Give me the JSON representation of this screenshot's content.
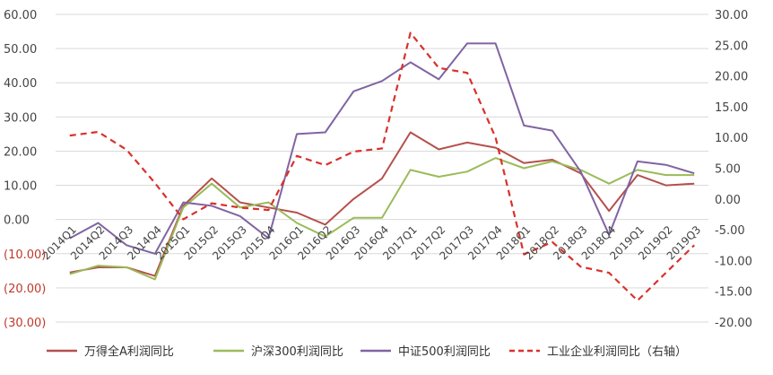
{
  "chart_data": {
    "type": "line",
    "categories": [
      "2014Q1",
      "2014Q2",
      "2014Q3",
      "2014Q4",
      "2015Q1",
      "2015Q2",
      "2015Q3",
      "2015Q4",
      "2016Q1",
      "2016Q2",
      "2016Q3",
      "2016Q4",
      "2017Q1",
      "2017Q2",
      "2017Q3",
      "2017Q4",
      "2018Q1",
      "2018Q2",
      "2018Q3",
      "2018Q4",
      "2019Q1",
      "2019Q2",
      "2019Q3"
    ],
    "left_axis": {
      "ylim": [
        -30,
        60
      ],
      "ticks": [
        60,
        50,
        40,
        30,
        20,
        10,
        0,
        -10,
        -20,
        -30
      ],
      "tick_labels": [
        "60.00",
        "50.00",
        "40.00",
        "30.00",
        "20.00",
        "10.00",
        "0.00",
        "(10.00)",
        "(20.00)",
        "(30.00)"
      ]
    },
    "right_axis": {
      "ylim": [
        -20,
        30
      ],
      "ticks": [
        30,
        25,
        20,
        15,
        10,
        5,
        0,
        -5,
        -10,
        -15,
        -20
      ],
      "tick_labels": [
        "30.00",
        "25.00",
        "20.00",
        "15.00",
        "10.00",
        "5.00",
        "0.00",
        "-5.00",
        "-10.00",
        "-15.00",
        "-20.00"
      ]
    },
    "grid": "horizontal",
    "legend_position": "bottom",
    "series": [
      {
        "name": "万得全A利润同比",
        "axis": "left",
        "color": "#b5504d",
        "dashed": false,
        "values": [
          -15.5,
          -14.0,
          -14.0,
          -16.5,
          4.0,
          12.0,
          5.0,
          3.5,
          2.0,
          -1.5,
          6.0,
          12.0,
          25.5,
          20.5,
          22.5,
          21.0,
          16.5,
          17.5,
          13.5,
          2.5,
          13.0,
          10.0,
          10.5
        ]
      },
      {
        "name": "沪深300利润同比",
        "axis": "left",
        "color": "#9bbb59",
        "dashed": false,
        "values": [
          -16.0,
          -13.5,
          -14.0,
          -17.5,
          3.5,
          10.5,
          3.5,
          5.0,
          -1.0,
          -5.0,
          0.5,
          0.5,
          14.5,
          12.5,
          14.0,
          18.0,
          15.0,
          17.0,
          14.5,
          10.5,
          14.5,
          13.0,
          13.0
        ]
      },
      {
        "name": "中证500利润同比",
        "axis": "left",
        "color": "#8064a2",
        "dashed": false,
        "values": [
          -5.5,
          -1.0,
          -7.5,
          -10.0,
          5.0,
          4.0,
          1.0,
          -5.5,
          25.0,
          25.5,
          37.5,
          40.5,
          46.0,
          41.0,
          51.5,
          51.5,
          27.5,
          26.0,
          14.0,
          -4.5,
          17.0,
          16.0,
          13.5
        ]
      },
      {
        "name": "工业企业利润同比（右轴）",
        "axis": "right",
        "color": "#d9312b",
        "dashed": true,
        "values": [
          10.3,
          10.9,
          8.0,
          2.6,
          -3.3,
          -0.7,
          -1.4,
          -1.8,
          7.0,
          5.5,
          7.7,
          8.2,
          27.0,
          21.3,
          20.5,
          10.0,
          -9.0,
          -7.0,
          -11.0,
          -12.0,
          -16.5,
          -12.0,
          -7.5
        ]
      }
    ]
  }
}
